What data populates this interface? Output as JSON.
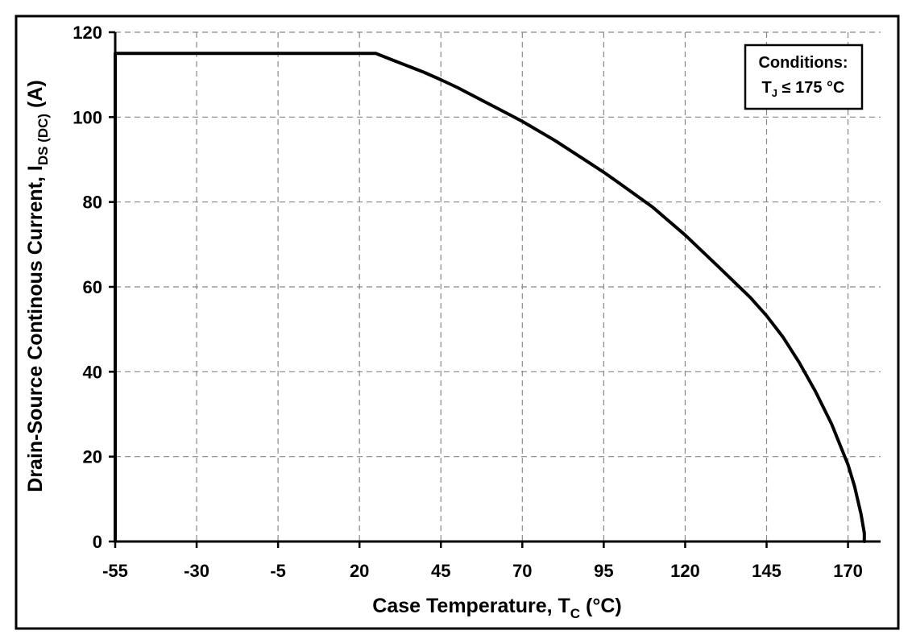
{
  "chart_data": {
    "type": "line",
    "title": "",
    "xlabel": {
      "main": "Case Temperature, T",
      "sub": "C",
      "end": " (°C)"
    },
    "ylabel": {
      "main": "Drain-Source Continous Current, I",
      "sub": "DS (DC)",
      "end": " (A)"
    },
    "xlim": [
      -55,
      180
    ],
    "ylim": [
      0,
      120
    ],
    "xticks": [
      -55,
      -30,
      -5,
      20,
      45,
      70,
      95,
      120,
      145,
      170
    ],
    "yticks": [
      0,
      20,
      40,
      60,
      80,
      100,
      120
    ],
    "grid": true,
    "annotation": {
      "line1": "Conditions:",
      "line2_main": "T",
      "line2_sub": "J",
      "line2_end": " ≤ 175 °C"
    },
    "series": [
      {
        "x": [
          -55,
          -55,
          25,
          30,
          40,
          45,
          50,
          60,
          70,
          80,
          90,
          95,
          100,
          110,
          120,
          130,
          140,
          145,
          150,
          155,
          160,
          165,
          170,
          172,
          174,
          175,
          175
        ],
        "y": [
          0,
          115,
          115,
          113.5,
          110.5,
          108.8,
          107,
          103,
          99,
          94.5,
          89.5,
          87,
          84.3,
          78.8,
          72.2,
          64.9,
          57.5,
          53.2,
          48.2,
          42.2,
          35.4,
          27.6,
          18.1,
          13,
          6.5,
          2,
          0
        ]
      }
    ]
  }
}
